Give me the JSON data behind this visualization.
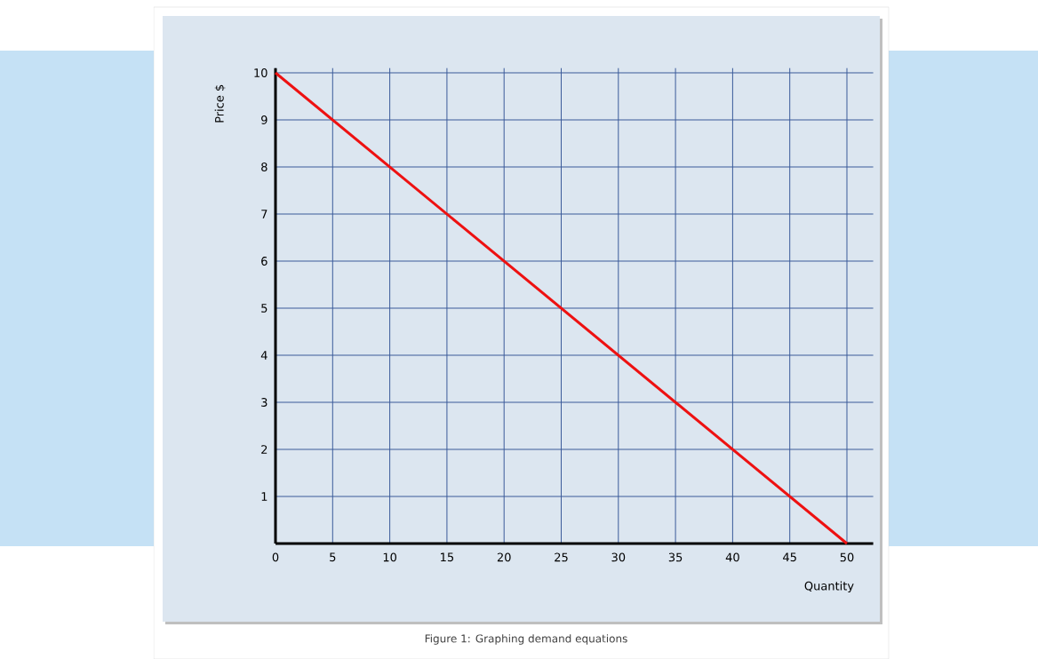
{
  "chart_data": {
    "type": "line",
    "xlabel": "Quantity",
    "ylabel": "Price $",
    "annotations": [
      "Figure 1: Graphing demand equations"
    ],
    "x": [
      0,
      50
    ],
    "series": [
      {
        "color": "#ee1111",
        "values": [
          10,
          0
        ]
      }
    ],
    "xlim": [
      0,
      52.3
    ],
    "ylim": [
      0,
      10.1
    ],
    "xticks": [
      0,
      5,
      10,
      15,
      20,
      25,
      30,
      35,
      40,
      45,
      50
    ],
    "yticks": [
      1,
      2,
      3,
      4,
      5,
      6,
      7,
      8,
      9,
      10
    ],
    "grid": true,
    "line_style": "solid"
  }
}
